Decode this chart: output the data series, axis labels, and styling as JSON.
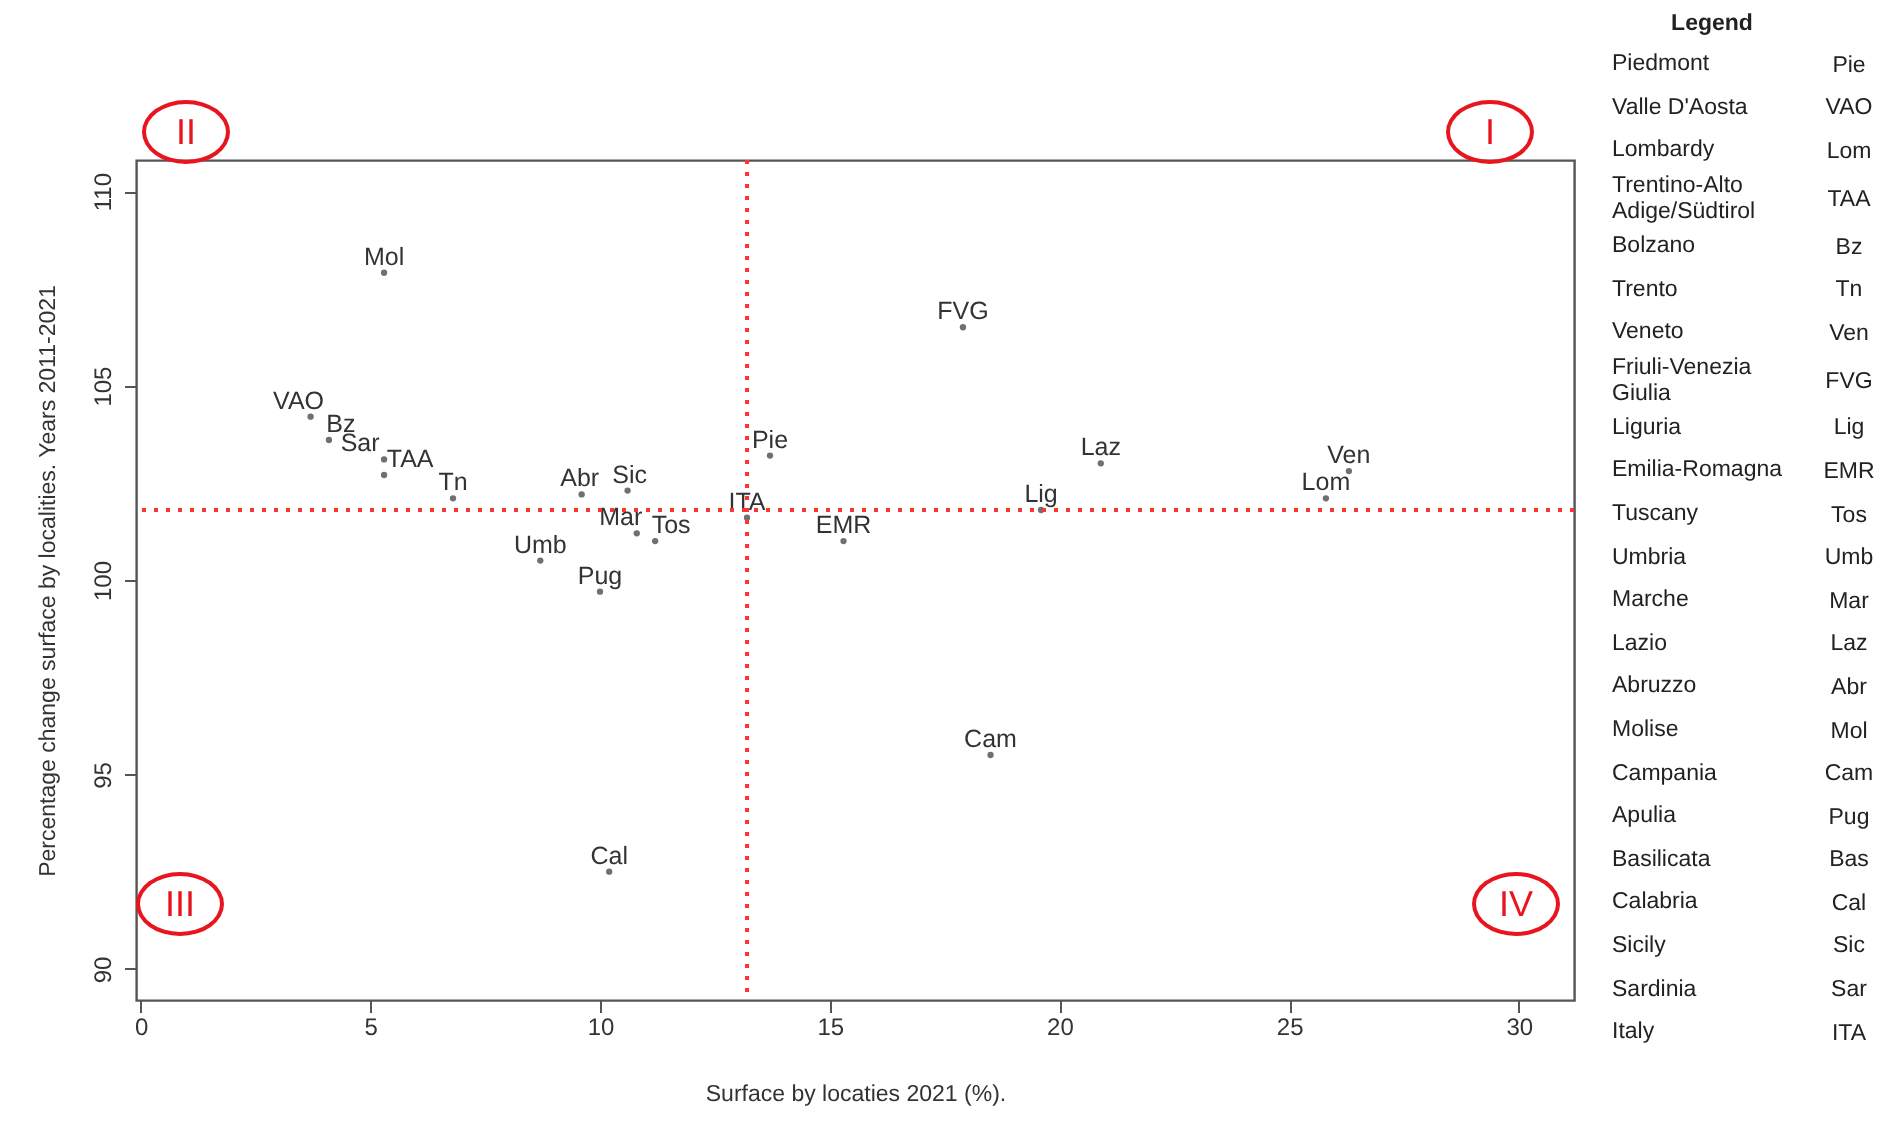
{
  "chart_data": {
    "type": "scatter",
    "xlabel": "Surface by locaties 2021 (%).",
    "ylabel": "Percentage change surface by localities. Years 2011-2021",
    "marker": "circle",
    "xlim": [
      -0.1,
      31.2
    ],
    "xticks": [
      0,
      5,
      10,
      15,
      20,
      25,
      30
    ],
    "ylim": [
      89.2,
      110.8
    ],
    "yticks": [
      90,
      95,
      100,
      105,
      110
    ],
    "series": [
      {
        "color": "#333333",
        "x": [
          5.3,
          3.7,
          4.1,
          5.3,
          5.3,
          6.8,
          9.6,
          10.6,
          13.7,
          13.2,
          10.8,
          11.2,
          8.7,
          10.0,
          17.9,
          20.9,
          19.6,
          15.3,
          26.3,
          25.8,
          18.5,
          10.2
        ],
        "values": [
          107.9,
          104.2,
          103.6,
          103.1,
          102.7,
          102.1,
          102.2,
          102.3,
          103.2,
          101.6,
          101.2,
          101.0,
          100.5,
          99.7,
          106.5,
          103.0,
          101.8,
          101.0,
          102.8,
          102.1,
          95.5,
          92.5
        ],
        "value_labels": [
          "Mol",
          "VAO",
          "Bz",
          "Sar",
          "TAA",
          "Tn",
          "Abr",
          "Sic",
          "Pie",
          "ITA",
          "Mar",
          "Tos",
          "Umb",
          "Pug",
          "FVG",
          "Laz",
          "Lig",
          "EMR",
          "Ven",
          "Lom",
          "Cam",
          "Cal"
        ]
      }
    ],
    "ref_lines": [
      {
        "axis": "x",
        "value": 13.2,
        "color": "#ff3333",
        "line_style": "dotted"
      },
      {
        "axis": "y",
        "value": 101.8,
        "color": "#ff3333",
        "line_style": "dotted"
      }
    ],
    "legend_title": "Legend",
    "annotations": [
      "II",
      "I",
      "III",
      "IV",
      "Piedmont",
      "Pie",
      "Valle D'Aosta",
      "VAO",
      "Lombardy",
      "Lom",
      "Trentino-Alto Adige/Südtirol",
      "TAA",
      "Bolzano",
      "Bz",
      "Trento",
      "Tn",
      "Veneto",
      "Ven",
      "Friuli-Venezia Giulia",
      "FVG",
      "Liguria",
      "Lig",
      "Emilia-Romagna",
      "EMR",
      "Tuscany",
      "Tos",
      "Umbria",
      "Umb",
      "Marche",
      "Mar",
      "Lazio",
      "Laz",
      "Abruzzo",
      "Abr",
      "Molise",
      "Mol",
      "Campania",
      "Cam",
      "Apulia",
      "Pug",
      "Basilicata",
      "Bas",
      "Calabria",
      "Cal",
      "Sicily",
      "Sic",
      "Sardinia",
      "Sar",
      "Italy",
      "ITA"
    ]
  }
}
